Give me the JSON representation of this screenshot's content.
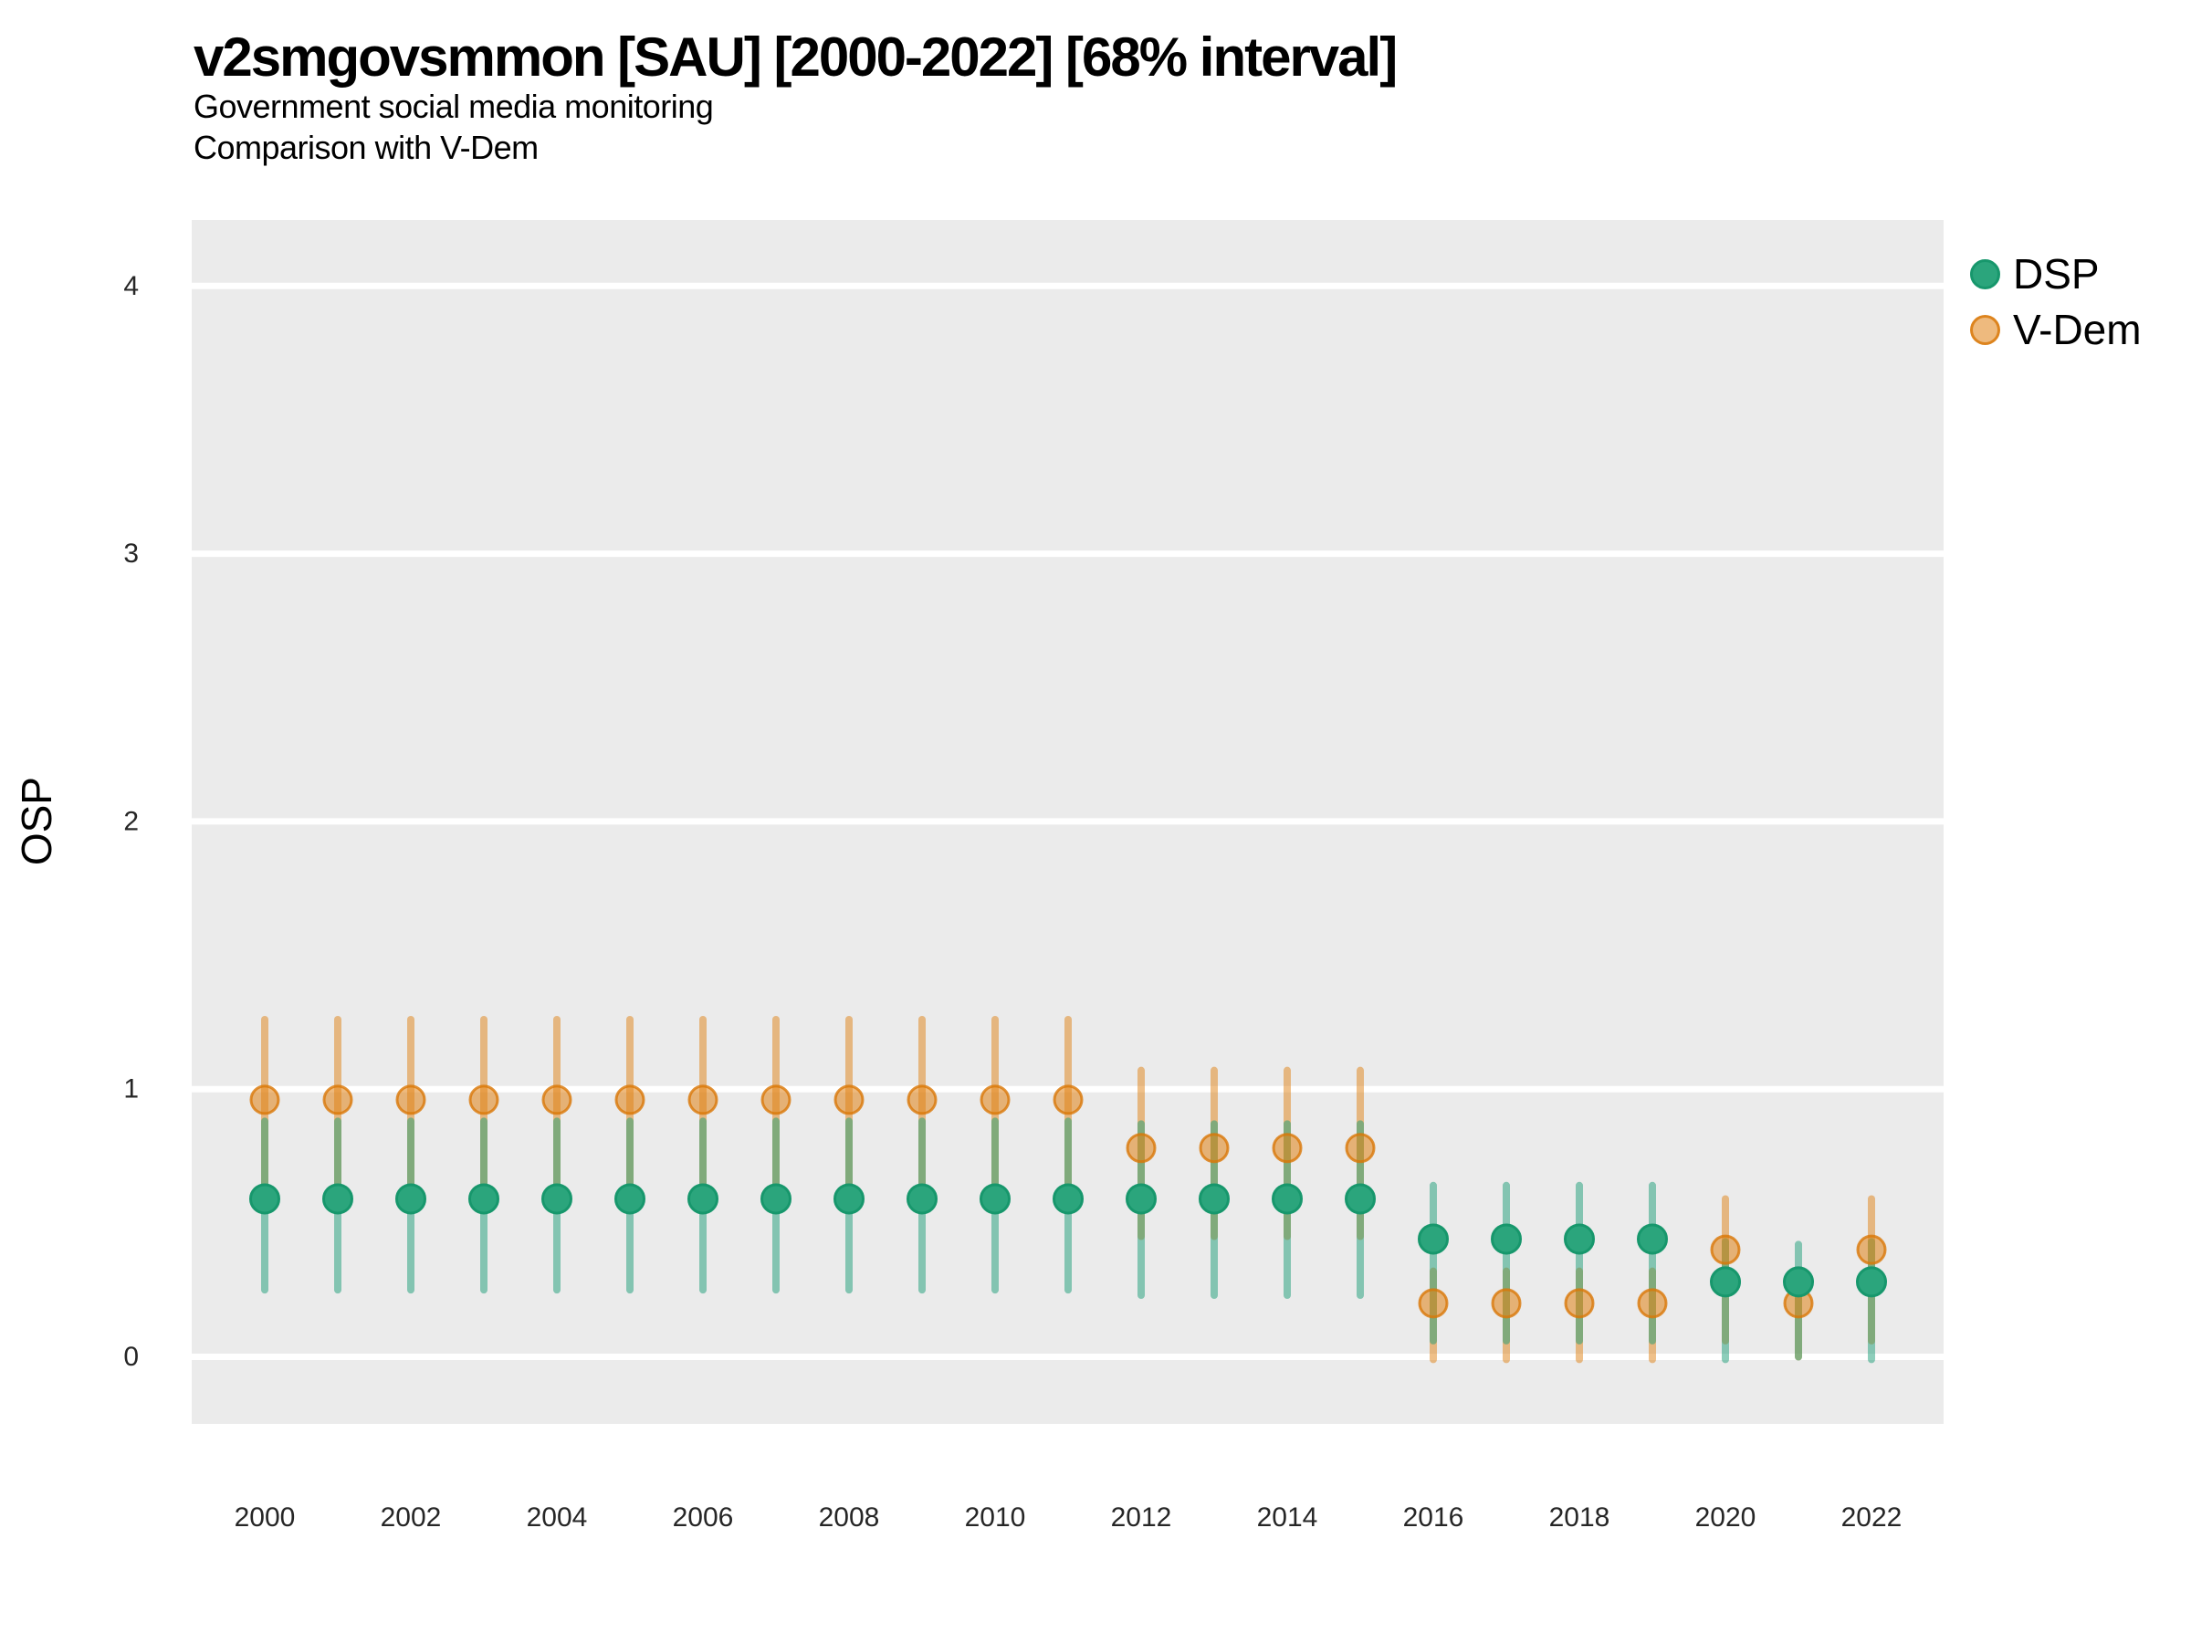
{
  "title": "v2smgovsmmon [SAU] [2000-2022] [68% interval]",
  "subtitle1": "Government social media monitoring",
  "subtitle2": "Comparison with V-Dem",
  "y_axis_label": "OSP",
  "legend": {
    "items": [
      {
        "label": "DSP",
        "series": "dsp"
      },
      {
        "label": "V-Dem",
        "series": "vdem"
      }
    ]
  },
  "colors": {
    "background": "#FFFFFF",
    "panel": "#EBEBEB",
    "gridline": "#FFFFFF",
    "tick_label": "#262626",
    "dsp_base": "#1B9E77",
    "dsp_line": "rgba(27,158,119,0.5)",
    "dsp_dot_fill": "#2BA57C",
    "dsp_dot_stroke": "#17976C",
    "vdem_base": "#E08214",
    "vdem_line": "rgba(224,130,20,0.5)",
    "vdem_dot_fill": "rgba(224,130,20,0.55)",
    "vdem_dot_stroke": "rgba(217,119,6,0.8)"
  },
  "chart_data": {
    "type": "scatter",
    "title": "v2smgovsmmon [SAU] [2000-2022] [68% interval]",
    "subtitle": "Government social media monitoring — Comparison with V-Dem",
    "xlabel": "",
    "ylabel": "OSP",
    "interval_level": "68%",
    "grid": "major-horizontal-only",
    "legend_position": "top-right",
    "ylim": [
      -0.28,
      4.28
    ],
    "xlim": [
      1999,
      2023
    ],
    "y_ticks": [
      0,
      1,
      2,
      3,
      4
    ],
    "x_ticks": [
      2000,
      2002,
      2004,
      2006,
      2008,
      2010,
      2012,
      2014,
      2016,
      2018,
      2020,
      2022
    ],
    "years": [
      2000,
      2001,
      2002,
      2003,
      2004,
      2005,
      2006,
      2007,
      2008,
      2009,
      2010,
      2011,
      2012,
      2013,
      2014,
      2015,
      2016,
      2017,
      2018,
      2019,
      2020,
      2021,
      2022
    ],
    "series": [
      {
        "name": "V-Dem",
        "key": "vdem",
        "est": [
          0.96,
          0.96,
          0.96,
          0.96,
          0.96,
          0.96,
          0.96,
          0.96,
          0.96,
          0.96,
          0.96,
          0.96,
          0.78,
          0.78,
          0.78,
          0.78,
          0.2,
          0.2,
          0.2,
          0.2,
          0.4,
          0.2,
          0.4
        ],
        "lo": [
          0.63,
          0.63,
          0.63,
          0.63,
          0.63,
          0.63,
          0.63,
          0.63,
          0.63,
          0.63,
          0.63,
          0.63,
          0.45,
          0.45,
          0.45,
          0.45,
          -0.01,
          -0.01,
          -0.01,
          -0.01,
          0.06,
          0.0,
          0.06
        ],
        "hi": [
          1.26,
          1.26,
          1.26,
          1.26,
          1.26,
          1.26,
          1.26,
          1.26,
          1.26,
          1.26,
          1.26,
          1.26,
          1.07,
          1.07,
          1.07,
          1.07,
          0.32,
          0.32,
          0.32,
          0.32,
          0.59,
          0.31,
          0.59
        ]
      },
      {
        "name": "DSP",
        "key": "dsp",
        "est": [
          0.59,
          0.59,
          0.59,
          0.59,
          0.59,
          0.59,
          0.59,
          0.59,
          0.59,
          0.59,
          0.59,
          0.59,
          0.59,
          0.59,
          0.59,
          0.59,
          0.44,
          0.44,
          0.44,
          0.44,
          0.28,
          0.28,
          0.28
        ],
        "lo": [
          0.25,
          0.25,
          0.25,
          0.25,
          0.25,
          0.25,
          0.25,
          0.25,
          0.25,
          0.25,
          0.25,
          0.25,
          0.23,
          0.23,
          0.23,
          0.23,
          0.06,
          0.06,
          0.06,
          0.06,
          -0.01,
          0.0,
          -0.01
        ],
        "hi": [
          0.88,
          0.88,
          0.88,
          0.88,
          0.88,
          0.88,
          0.88,
          0.88,
          0.88,
          0.88,
          0.88,
          0.88,
          0.87,
          0.87,
          0.87,
          0.87,
          0.64,
          0.64,
          0.64,
          0.64,
          0.43,
          0.42,
          0.43
        ]
      }
    ]
  }
}
